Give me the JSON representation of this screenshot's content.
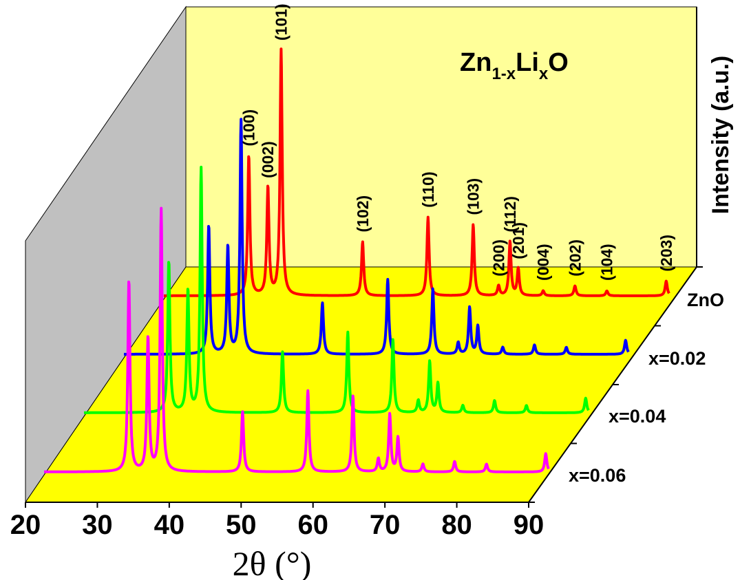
{
  "chart_data": {
    "type": "line",
    "title_parts": [
      "Zn",
      "1-x",
      "Li",
      "x",
      "O"
    ],
    "xlabel": "2θ (°)",
    "ylabel": "Intensity (a.u.)",
    "xlim": [
      20,
      90
    ],
    "xticks": [
      "20",
      "30",
      "40",
      "50",
      "60",
      "70",
      "80",
      "90"
    ],
    "grid": false,
    "colors": {
      "back_wall": "#ffff99",
      "floor": "#ffff00",
      "side_wall": "#c0c0c0"
    },
    "peak_labels": [
      "(100)",
      "(002)",
      "(101)",
      "(102)",
      "(110)",
      "(103)",
      "(200)",
      "(112)",
      "(201)",
      "(004)",
      "(202)",
      "(104)",
      "(203)"
    ],
    "peaks_2theta": [
      31.77,
      34.42,
      36.25,
      47.54,
      56.6,
      62.86,
      66.38,
      67.96,
      69.1,
      72.56,
      76.96,
      81.38,
      89.6
    ],
    "series": [
      {
        "name": "ZnO",
        "color": "#ff0000",
        "relative_intensities": [
          0.57,
          0.44,
          1.0,
          0.22,
          0.32,
          0.29,
          0.04,
          0.22,
          0.11,
          0.02,
          0.04,
          0.02,
          0.06
        ]
      },
      {
        "name": "x=0.02",
        "color": "#0000ff",
        "relative_intensities": [
          0.55,
          0.46,
          1.0,
          0.22,
          0.32,
          0.28,
          0.05,
          0.2,
          0.12,
          0.03,
          0.04,
          0.03,
          0.06
        ]
      },
      {
        "name": "x=0.04",
        "color": "#00ff00",
        "relative_intensities": [
          0.62,
          0.5,
          1.0,
          0.25,
          0.33,
          0.3,
          0.05,
          0.21,
          0.12,
          0.03,
          0.05,
          0.03,
          0.06
        ]
      },
      {
        "name": "x=0.06",
        "color": "#ff00ff",
        "relative_intensities": [
          0.73,
          0.51,
          1.0,
          0.23,
          0.31,
          0.29,
          0.05,
          0.22,
          0.13,
          0.03,
          0.04,
          0.03,
          0.07
        ]
      }
    ]
  }
}
